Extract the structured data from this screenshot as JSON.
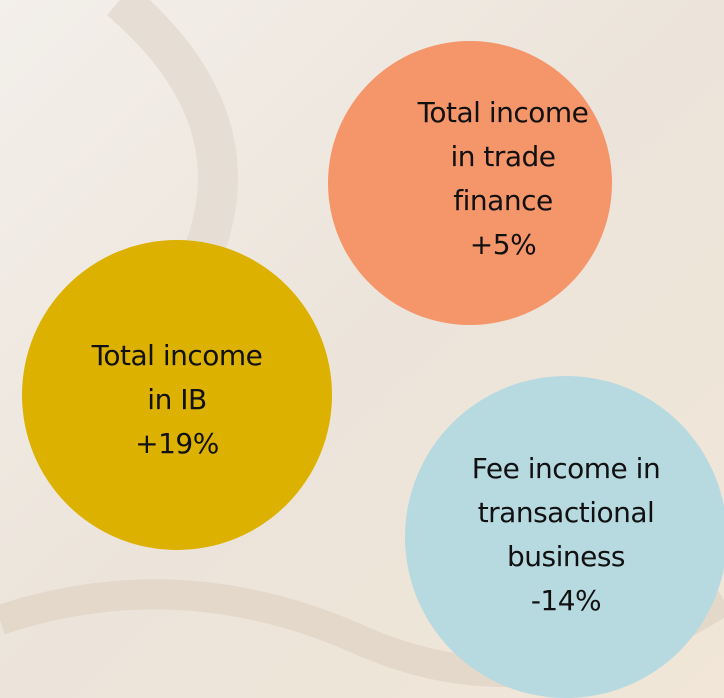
{
  "nodes": [
    {
      "lines": [
        "Total income",
        "in trade",
        "finance"
      ],
      "change": "+5%"
    },
    {
      "lines": [
        "Total income",
        "in IB"
      ],
      "change": "+19%"
    },
    {
      "lines": [
        "Fee income in",
        "transactional",
        "business"
      ],
      "change": "-14%"
    }
  ]
}
